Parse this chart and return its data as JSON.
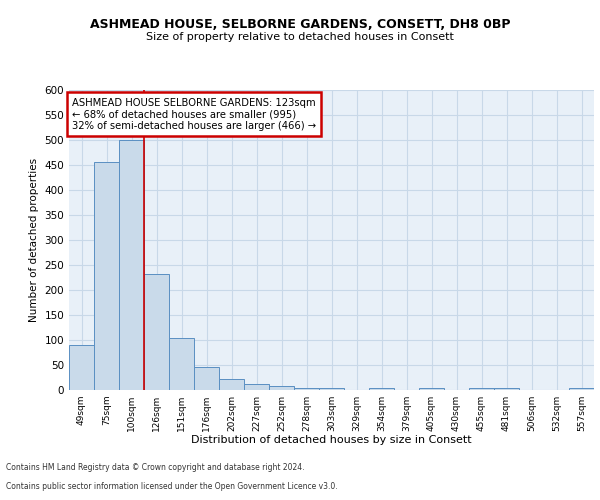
{
  "title1": "ASHMEAD HOUSE, SELBORNE GARDENS, CONSETT, DH8 0BP",
  "title2": "Size of property relative to detached houses in Consett",
  "xlabel": "Distribution of detached houses by size in Consett",
  "ylabel": "Number of detached properties",
  "bin_labels": [
    "49sqm",
    "75sqm",
    "100sqm",
    "126sqm",
    "151sqm",
    "176sqm",
    "202sqm",
    "227sqm",
    "252sqm",
    "278sqm",
    "303sqm",
    "329sqm",
    "354sqm",
    "379sqm",
    "405sqm",
    "430sqm",
    "455sqm",
    "481sqm",
    "506sqm",
    "532sqm",
    "557sqm"
  ],
  "bar_heights": [
    90,
    457,
    500,
    233,
    104,
    47,
    22,
    12,
    8,
    5,
    5,
    0,
    5,
    0,
    5,
    0,
    5,
    5,
    0,
    0,
    5
  ],
  "bar_color": "#c9daea",
  "bar_edge_color": "#5a8fc2",
  "annotation_text": "ASHMEAD HOUSE SELBORNE GARDENS: 123sqm\n← 68% of detached houses are smaller (995)\n32% of semi-detached houses are larger (466) →",
  "annotation_box_color": "#ffffff",
  "annotation_box_edge_color": "#cc0000",
  "footer1": "Contains HM Land Registry data © Crown copyright and database right 2024.",
  "footer2": "Contains public sector information licensed under the Open Government Licence v3.0.",
  "ylim": [
    0,
    600
  ],
  "yticks": [
    0,
    50,
    100,
    150,
    200,
    250,
    300,
    350,
    400,
    450,
    500,
    550,
    600
  ],
  "grid_color": "#c8d8e8",
  "background_color": "#e8f0f8"
}
